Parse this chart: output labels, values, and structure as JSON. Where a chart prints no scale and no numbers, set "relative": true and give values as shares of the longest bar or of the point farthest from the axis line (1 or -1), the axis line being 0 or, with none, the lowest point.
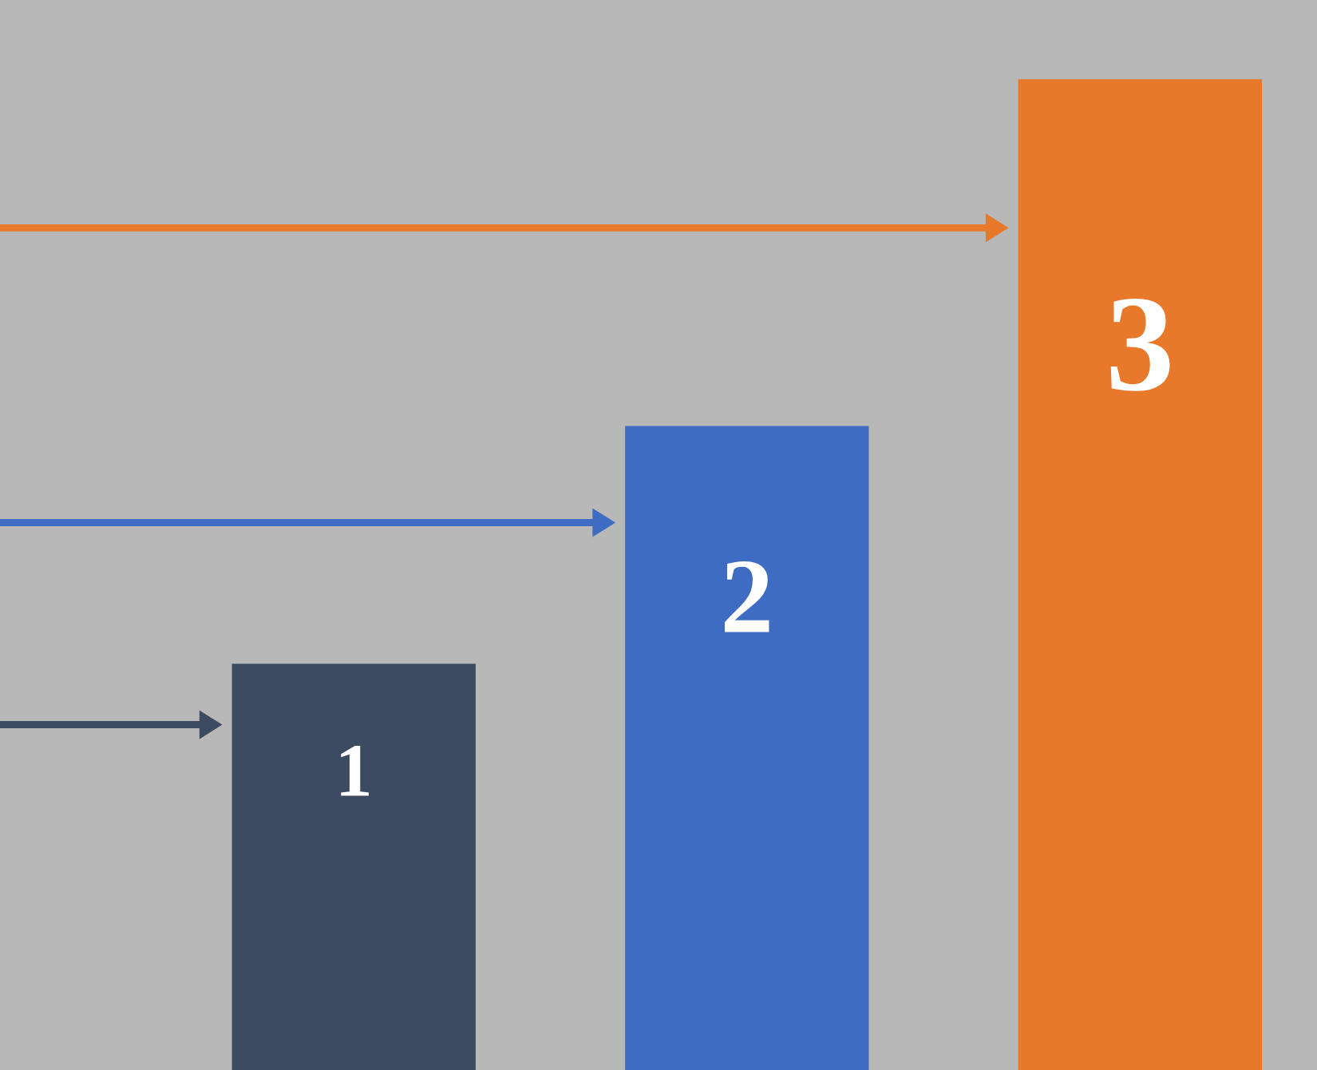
{
  "chart_data": {
    "type": "bar",
    "relative": true,
    "categories": [
      "1",
      "2",
      "3"
    ],
    "values": [
      0.41,
      0.65,
      1
    ],
    "colors": [
      "#3d4b61",
      "#3e6cc2",
      "#e8782a"
    ]
  }
}
